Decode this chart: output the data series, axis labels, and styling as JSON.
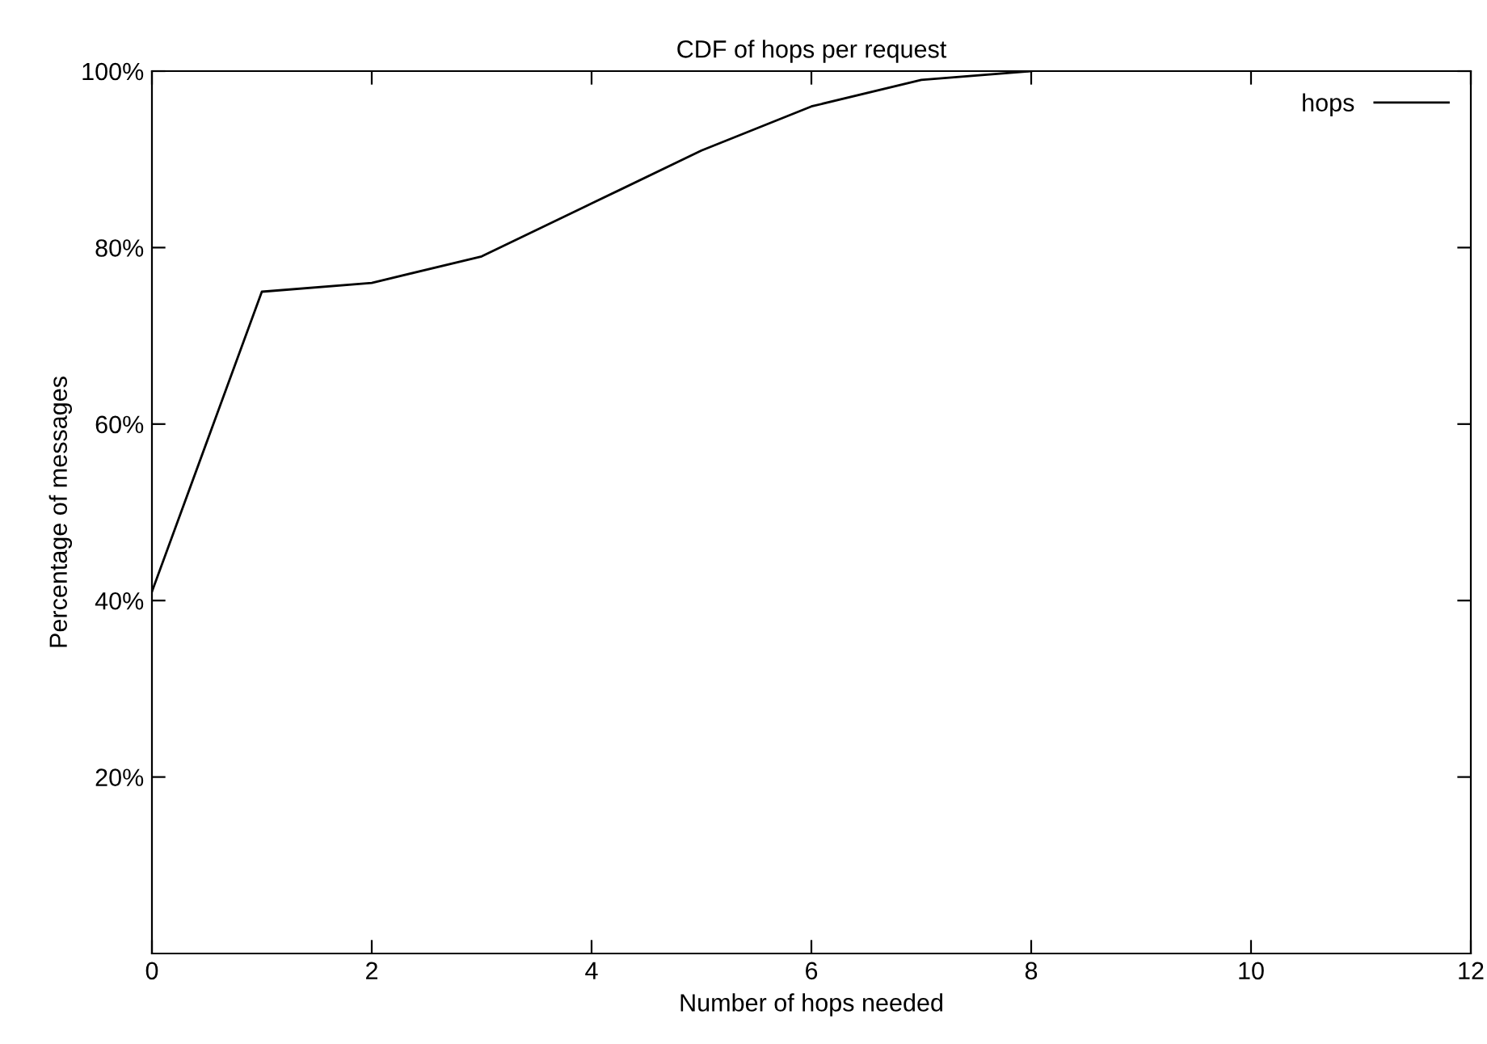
{
  "chart_data": {
    "type": "line",
    "title": "CDF of hops per request",
    "xlabel": "Number of hops needed",
    "ylabel": "Percentage of messages",
    "x": [
      0,
      1,
      2,
      3,
      4,
      5,
      6,
      7,
      8
    ],
    "series": [
      {
        "name": "hops",
        "color": "#000000",
        "values": [
          41,
          75,
          76,
          79,
          85,
          91,
          96,
          99,
          100
        ]
      }
    ],
    "xlim": [
      0,
      12
    ],
    "xticks": [
      0,
      2,
      4,
      6,
      8,
      10,
      12
    ],
    "ylim": [
      0,
      100
    ],
    "yticks": [
      {
        "value": 20,
        "label": "20%"
      },
      {
        "value": 40,
        "label": "40%"
      },
      {
        "value": 60,
        "label": "60%"
      },
      {
        "value": 80,
        "label": "80%"
      },
      {
        "value": 100,
        "label": "100%"
      }
    ],
    "grid": false,
    "legend": "top right",
    "marker": "none",
    "line_style": "solid"
  }
}
